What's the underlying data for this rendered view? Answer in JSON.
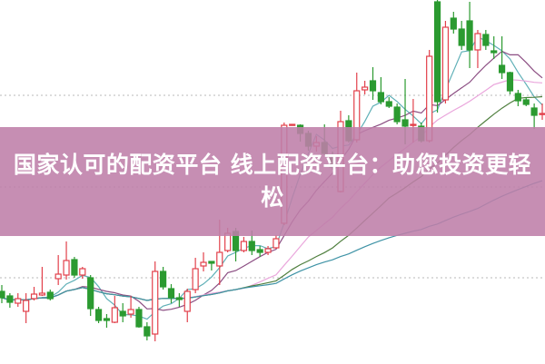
{
  "title": "国家认可的配资平台 线上配资平台：助您投资更轻松",
  "colors": {
    "up": "#e2404b",
    "down": "#2b9a30",
    "banner": "#be7ea8",
    "grid": "#b8b8b8",
    "ma": [
      "#5fb0b7",
      "#8b4d82",
      "#eaa6dc",
      "#4f7f3e",
      "#3f93a6"
    ]
  },
  "chart_data": {
    "type": "candlestick",
    "grid": "horizontal dotted",
    "ma_periods": [
      5,
      10,
      20,
      30,
      60
    ],
    "ohlc": [
      [
        7.9,
        8.6,
        6.6,
        7.2
      ],
      [
        7.4,
        7.7,
        6.1,
        6.7
      ],
      [
        6.6,
        7.7,
        6.2,
        7.1
      ],
      [
        5.7,
        7.7,
        4.4,
        6.9
      ],
      [
        7.1,
        8.4,
        6.9,
        7.6
      ],
      [
        7.5,
        10.6,
        7.4,
        7.7
      ],
      [
        7.8,
        8.1,
        6.9,
        7.1
      ],
      [
        9.3,
        11.9,
        8.6,
        9.8
      ],
      [
        9.7,
        13.4,
        9.2,
        11.3
      ],
      [
        11.4,
        11.7,
        9.4,
        9.7
      ],
      [
        9.7,
        10.6,
        9.3,
        10.4
      ],
      [
        9.4,
        9.7,
        5.2,
        6.0
      ],
      [
        5.9,
        6.2,
        4.4,
        4.7
      ],
      [
        4.9,
        5.4,
        3.9,
        4.7
      ],
      [
        4.5,
        7.4,
        4.4,
        6.1
      ],
      [
        5.7,
        6.6,
        4.5,
        5.2
      ],
      [
        5.4,
        7.4,
        5.0,
        5.9
      ],
      [
        5.9,
        6.2,
        3.9,
        4.0
      ],
      [
        4.0,
        4.5,
        2.5,
        3.0
      ],
      [
        3.2,
        11.2,
        2.4,
        10.1
      ],
      [
        10.1,
        10.6,
        8.1,
        8.4
      ],
      [
        8.2,
        8.7,
        6.6,
        7.2
      ],
      [
        7.2,
        7.7,
        6.2,
        7.0
      ],
      [
        5.7,
        8.2,
        4.5,
        7.9
      ],
      [
        8.1,
        11.6,
        7.7,
        10.4
      ],
      [
        10.7,
        12.2,
        10.1,
        11.1
      ],
      [
        11.2,
        11.2,
        10.2,
        11.0
      ],
      [
        10.7,
        15.8,
        8.6,
        12.2
      ],
      [
        12.4,
        14.9,
        12.2,
        14.3
      ],
      [
        14.5,
        14.9,
        11.2,
        12.4
      ],
      [
        12.4,
        13.9,
        12.2,
        13.4
      ],
      [
        13.4,
        14.6,
        11.9,
        12.4
      ],
      [
        12.5,
        12.9,
        11.7,
        12.2
      ],
      [
        12.2,
        12.9,
        11.9,
        12.6
      ],
      [
        12.7,
        14.1,
        12.6,
        13.7
      ],
      [
        15.4,
        26.5,
        15.2,
        26.2
      ],
      [
        26.2,
        26.3,
        26.2,
        26.3
      ],
      [
        26.2,
        26.3,
        24.4,
        25.3
      ],
      [
        25.3,
        25.6,
        23.4,
        23.9
      ],
      [
        23.9,
        25.0,
        23.3,
        24.3
      ],
      [
        24.3,
        26.3,
        22.9,
        23.1
      ],
      [
        22.6,
        23.3,
        21.3,
        21.6
      ],
      [
        18.9,
        27.8,
        18.8,
        26.6
      ],
      [
        26.7,
        27.3,
        24.3,
        24.5
      ],
      [
        24.6,
        32.0,
        24.3,
        30.0
      ],
      [
        30.1,
        31.1,
        29.6,
        30.4
      ],
      [
        31.1,
        32.6,
        29.0,
        30.0
      ],
      [
        29.8,
        31.5,
        28.5,
        28.8
      ],
      [
        28.8,
        29.3,
        28.1,
        28.3
      ],
      [
        28.2,
        28.6,
        26.3,
        26.6
      ],
      [
        26.8,
        31.3,
        24.1,
        26.1
      ],
      [
        26.2,
        29.1,
        24.3,
        26.3
      ],
      [
        26.1,
        26.5,
        24.3,
        24.5
      ],
      [
        24.5,
        34.5,
        24.3,
        33.8
      ],
      [
        39.8,
        40.0,
        27.6,
        28.8
      ],
      [
        29.0,
        37.7,
        28.6,
        37.0
      ],
      [
        38.0,
        38.7,
        36.3,
        36.8
      ],
      [
        36.8,
        37.7,
        34.5,
        35.0
      ],
      [
        37.7,
        39.8,
        32.5,
        34.5
      ],
      [
        34.5,
        36.7,
        32.5,
        36.3
      ],
      [
        36.2,
        36.7,
        34.5,
        35.0
      ],
      [
        34.4,
        36.0,
        33.5,
        34.2
      ],
      [
        32.8,
        36.0,
        31.3,
        32.0
      ],
      [
        32.0,
        32.1,
        29.6,
        30.0
      ],
      [
        29.7,
        30.1,
        28.3,
        28.9
      ],
      [
        29.0,
        29.3,
        28.3,
        28.5
      ],
      [
        28.1,
        28.6,
        25.8,
        27.3
      ],
      [
        27.4,
        28.6,
        26.8,
        27.5
      ]
    ]
  }
}
